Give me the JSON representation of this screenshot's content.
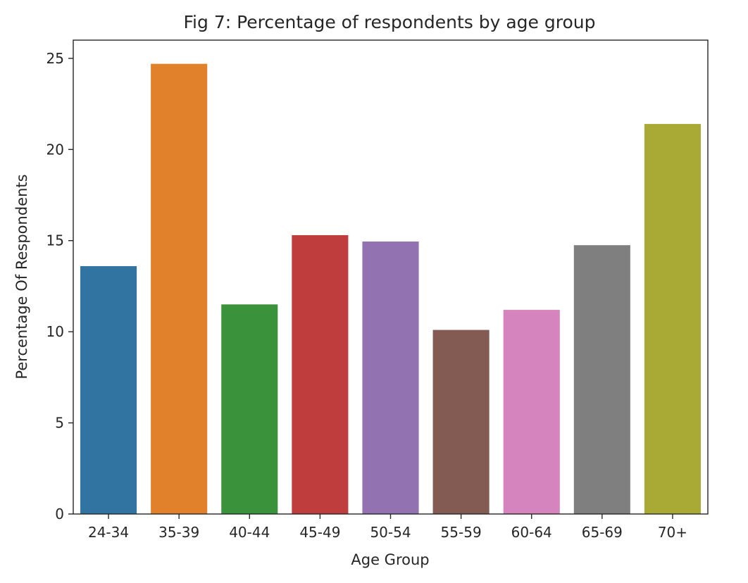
{
  "chart_data": {
    "type": "bar",
    "title": "Fig 7: Percentage of respondents by age group",
    "xlabel": "Age Group",
    "ylabel": "Percentage Of Respondents",
    "categories": [
      "24-34",
      "35-39",
      "40-44",
      "45-49",
      "50-54",
      "55-59",
      "60-64",
      "65-69",
      "70+"
    ],
    "values": [
      13.6,
      24.7,
      11.5,
      15.3,
      14.95,
      10.1,
      11.2,
      14.75,
      21.4
    ],
    "colors": [
      "#3274a1",
      "#e1812c",
      "#3a923a",
      "#c03d3e",
      "#9372b2",
      "#845b53",
      "#d684bd",
      "#7f7f7f",
      "#a9aa35"
    ],
    "ylim": [
      0,
      26.0
    ],
    "yticks": [
      0,
      5,
      10,
      15,
      20,
      25
    ],
    "grid": false,
    "legend": "none"
  }
}
